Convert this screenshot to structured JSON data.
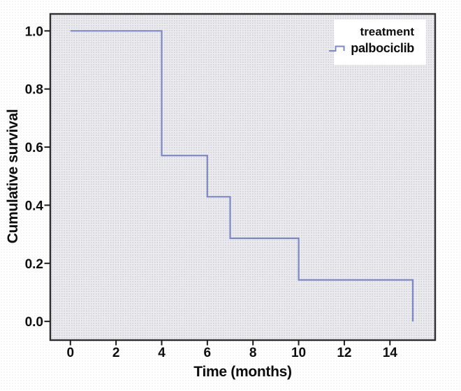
{
  "colors": {
    "line": "#7c88c5",
    "frame": "#2e2e31",
    "tick": "#1c1c1c",
    "plot_bg": "#ebebee",
    "legend_bg": "#ffffff",
    "text": "#0d0d0d"
  },
  "chart_data": {
    "type": "line",
    "subtype": "kaplan-meier-step",
    "title": "",
    "xlabel": "Time (months)",
    "ylabel": "Cumulative survival",
    "legend_title": "treatment",
    "legend_position": "top-right",
    "grid": false,
    "xlim": [
      -0.85,
      15.95
    ],
    "ylim": [
      -0.062,
      1.056
    ],
    "x_ticks": [
      0,
      2,
      4,
      6,
      8,
      10,
      12,
      14
    ],
    "y_ticks": [
      0.0,
      0.2,
      0.4,
      0.6,
      0.8,
      1.0
    ],
    "series": [
      {
        "name": "palbociclib",
        "color": "#7c88c5",
        "step_points": [
          [
            0,
            1.0
          ],
          [
            4,
            1.0
          ],
          [
            4,
            0.571
          ],
          [
            6,
            0.571
          ],
          [
            6,
            0.429
          ],
          [
            7,
            0.429
          ],
          [
            7,
            0.286
          ],
          [
            10,
            0.286
          ],
          [
            10,
            0.143
          ],
          [
            15,
            0.143
          ],
          [
            15,
            0.0
          ]
        ],
        "event_times": [
          4,
          6,
          7,
          10,
          15
        ],
        "survival_after_event": [
          0.571,
          0.429,
          0.286,
          0.143,
          0.0
        ]
      }
    ]
  }
}
